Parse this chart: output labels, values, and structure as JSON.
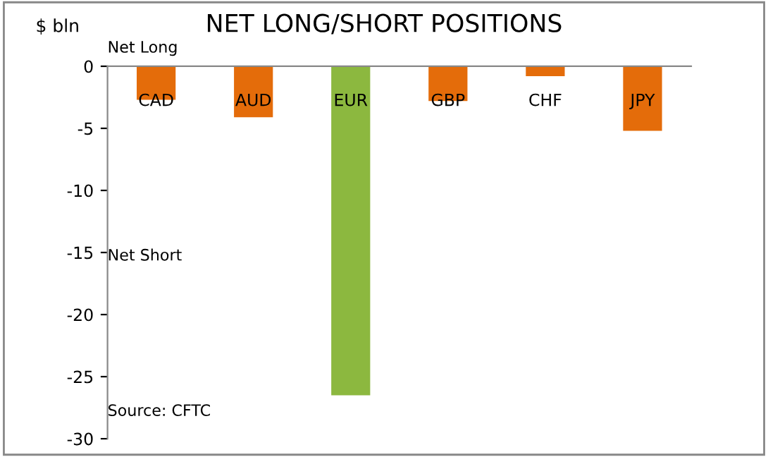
{
  "chart_data": {
    "type": "bar",
    "title": "NET LONG/SHORT POSITIONS",
    "ylabel": "$ bln",
    "categories": [
      "CAD",
      "AUD",
      "EUR",
      "GBP",
      "CHF",
      "JPY"
    ],
    "values": [
      -2.7,
      -4.1,
      -26.5,
      -2.8,
      -0.8,
      -5.2
    ],
    "colors": [
      "#e46c0a",
      "#e46c0a",
      "#8cb83f",
      "#e46c0a",
      "#e46c0a",
      "#e46c0a"
    ],
    "ylim": [
      -30,
      0
    ],
    "yticks": [
      -30,
      -25,
      -20,
      -15,
      -10,
      -5,
      0
    ],
    "grid": false,
    "legend": false,
    "annotations": [
      "Net Long",
      "Net Short",
      "Source: CFTC"
    ]
  }
}
